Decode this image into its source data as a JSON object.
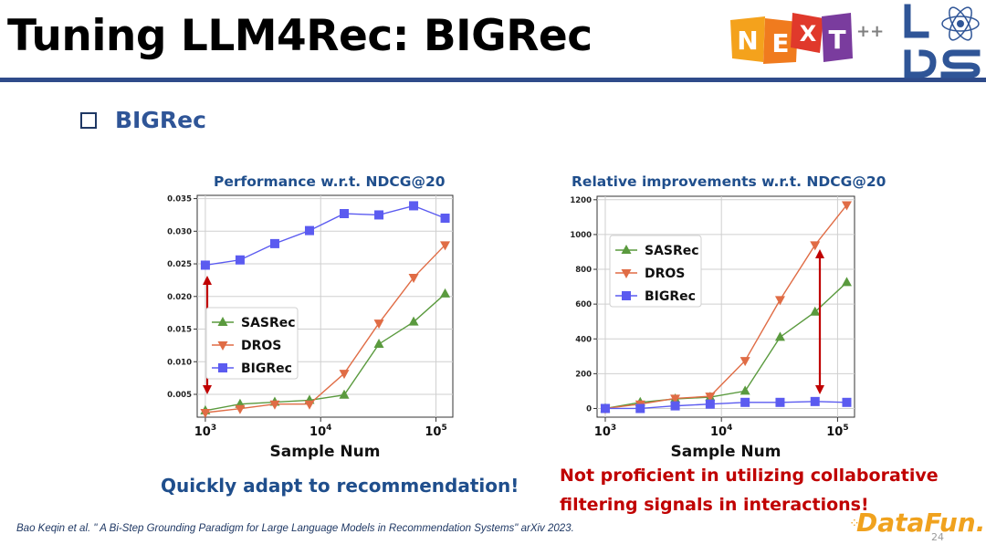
{
  "slide": {
    "title": "Tuning LLM4Rec: BIGRec",
    "bullet": "BIGRec",
    "caption_left": "Quickly adapt to recommendation!",
    "caption_right_line1": "Not proficient in utilizing collaborative",
    "caption_right_line2": "filtering signals in interactions!",
    "citation": "Bao Keqin et al. \" A Bi-Step Grounding Paradigm for Large Language Models in Recommendation Systems\" arXiv 2023.",
    "page_number": "24"
  },
  "logos": {
    "next_letters": [
      "N",
      "E",
      "X",
      "T"
    ],
    "next_suffix": "++",
    "datafun": "DataFun.",
    "lds_icon": "lds-atom-logo-icon"
  },
  "colors": {
    "title_rule": "#2f4b8a",
    "bullet": "#2f5597",
    "chart_title": "#1f4e8c",
    "caption_right": "#c00000",
    "arrow": "#c00000",
    "sasrec": "#5a9a3e",
    "dros": "#e06c45",
    "bigrec": "#5b5bf0"
  },
  "chart_data": [
    {
      "type": "line",
      "title": "Performance w.r.t. NDCG@20",
      "xlabel": "Sample Num",
      "ylabel": "",
      "x": [
        1000,
        2000,
        4000,
        8000,
        16000,
        32000,
        64000,
        120000
      ],
      "xscale": "log",
      "xticks": [
        "10^3",
        "10^4",
        "10^5"
      ],
      "ylim": [
        0.0015,
        0.0355
      ],
      "yticks": [
        "0.005",
        "0.010",
        "0.015",
        "0.020",
        "0.025",
        "0.030",
        "0.035"
      ],
      "legend_position": "lower-left",
      "series": [
        {
          "name": "SASRec",
          "values": [
            0.0025,
            0.0035,
            0.0038,
            0.0041,
            0.0049,
            0.0127,
            0.0161,
            0.0204
          ]
        },
        {
          "name": "DROS",
          "values": [
            0.0022,
            0.0028,
            0.0035,
            0.0035,
            0.0082,
            0.0159,
            0.0229,
            0.0279
          ]
        },
        {
          "name": "BIGRec",
          "values": [
            0.0248,
            0.0256,
            0.0281,
            0.0301,
            0.0327,
            0.0325,
            0.0339,
            0.032
          ]
        }
      ],
      "annotation": "double-headed red arrow between BIGRec and baselines at 10^3"
    },
    {
      "type": "line",
      "title": "Relative improvements w.r.t. NDCG@20",
      "xlabel": "Sample Num",
      "ylabel": "",
      "x": [
        1000,
        2000,
        4000,
        8000,
        16000,
        32000,
        64000,
        120000
      ],
      "xscale": "log",
      "xticks": [
        "10^3",
        "10^4",
        "10^5"
      ],
      "ylim": [
        -50,
        1220
      ],
      "yticks": [
        "0",
        "200",
        "400",
        "600",
        "800",
        "1000",
        "1200"
      ],
      "legend_position": "upper-left",
      "series": [
        {
          "name": "SASRec",
          "values": [
            0,
            35,
            55,
            65,
            100,
            410,
            555,
            725
          ]
        },
        {
          "name": "DROS",
          "values": [
            0,
            25,
            58,
            70,
            275,
            625,
            940,
            1170
          ]
        },
        {
          "name": "BIGRec",
          "values": [
            0,
            0,
            15,
            25,
            35,
            35,
            40,
            35
          ]
        }
      ],
      "annotation": "double-headed red arrow between DROS and BIGRec near 10^5"
    }
  ]
}
